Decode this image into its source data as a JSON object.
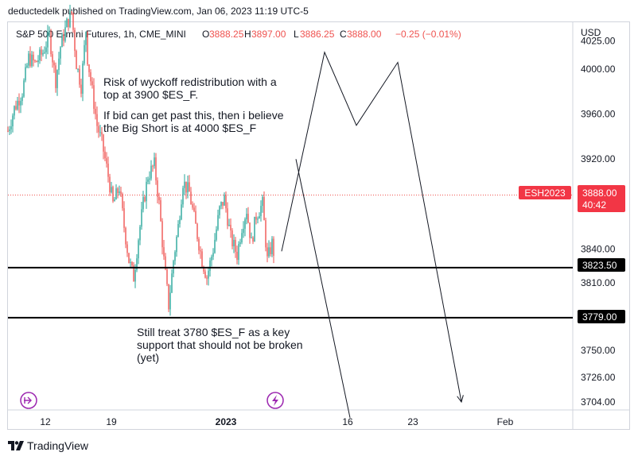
{
  "publish_line": "deductedelk published on TradingView.com, Jan 06, 2023 11:19 UTC-5",
  "legend": {
    "symbol": "S&P 500 E-mini Futures, 1h, CME_MINI",
    "open_label": "O",
    "open": "3888.25",
    "high_label": "H",
    "high": "3897.00",
    "low_label": "L",
    "low": "3886.25",
    "close_label": "C",
    "close": "3888.00",
    "change": "−0.25 (−0.01%)"
  },
  "currency": "USD",
  "colors": {
    "up": "#26a69a",
    "down": "#ef5350",
    "price_label": "#f23645",
    "hline": "#000000",
    "accent": "#9c27b0"
  },
  "annotations": {
    "note1_line1": "Risk of wyckoff redistribution with a",
    "note1_line2": "top at 3900 $ES_F.",
    "note2_line1": "If bid can get past this, then i believe",
    "note2_line2": "the Big Short is at 4000 $ES_F",
    "note3_line1": "Still treat 3780 $ES_F as a key",
    "note3_line2": "support that should not be broken",
    "note3_line3": "(yet)"
  },
  "price_tag": {
    "symbol": "ESH2023",
    "price": "3888.00",
    "countdown": "40:42"
  },
  "hline_labels": [
    "3823.50",
    "3779.00"
  ],
  "footer_brand": "TradingView",
  "chart_data": {
    "type": "candlestick",
    "title": "S&P 500 E-mini Futures, 1h, CME_MINI",
    "y_ticks": [
      4025,
      4000,
      3960,
      3920,
      3840,
      3810,
      3750,
      3726,
      3704
    ],
    "y_tick_labels": [
      "4025.00",
      "4000.00",
      "3960.00",
      "3920.00",
      "3840.00",
      "3810.00",
      "3750.00",
      "3726.00",
      "3704.00"
    ],
    "ylim": [
      3697,
      4030
    ],
    "x_ticks": [
      "12",
      "19",
      "2023",
      "16",
      "23",
      "Feb"
    ],
    "horizontal_lines": [
      3823.5,
      3779.0
    ],
    "current_price": 3888.0,
    "price_path": [
      [
        0,
        3945
      ],
      [
        8,
        3965
      ],
      [
        18,
        3980
      ],
      [
        26,
        4010
      ],
      [
        34,
        4005
      ],
      [
        44,
        4015
      ],
      [
        52,
        4030
      ],
      [
        60,
        3990
      ],
      [
        66,
        4020
      ],
      [
        74,
        4040
      ],
      [
        80,
        4050
      ],
      [
        86,
        4005
      ],
      [
        92,
        3985
      ],
      [
        98,
        4035
      ],
      [
        100,
        4010
      ],
      [
        106,
        3980
      ],
      [
        112,
        3950
      ],
      [
        118,
        3935
      ],
      [
        126,
        3905
      ],
      [
        132,
        3880
      ],
      [
        140,
        3895
      ],
      [
        146,
        3860
      ],
      [
        152,
        3830
      ],
      [
        158,
        3815
      ],
      [
        164,
        3850
      ],
      [
        170,
        3880
      ],
      [
        176,
        3905
      ],
      [
        184,
        3915
      ],
      [
        190,
        3880
      ],
      [
        196,
        3830
      ],
      [
        202,
        3790
      ],
      [
        208,
        3830
      ],
      [
        214,
        3860
      ],
      [
        220,
        3900
      ],
      [
        228,
        3890
      ],
      [
        236,
        3860
      ],
      [
        244,
        3830
      ],
      [
        250,
        3815
      ],
      [
        258,
        3840
      ],
      [
        266,
        3875
      ],
      [
        272,
        3885
      ],
      [
        280,
        3850
      ],
      [
        288,
        3835
      ],
      [
        294,
        3860
      ],
      [
        300,
        3875
      ],
      [
        306,
        3845
      ],
      [
        312,
        3870
      ],
      [
        320,
        3880
      ],
      [
        326,
        3830
      ],
      [
        332,
        3845
      ],
      [
        336,
        3830
      ],
      [
        344,
        3888
      ]
    ],
    "projection_path": [
      [
        344,
        3838
      ],
      [
        398,
        4015
      ],
      [
        438,
        3950
      ],
      [
        490,
        4006
      ],
      [
        570,
        3704
      ]
    ],
    "projection_path_2": [
      [
        362,
        3920
      ],
      [
        430,
        3690
      ]
    ]
  }
}
